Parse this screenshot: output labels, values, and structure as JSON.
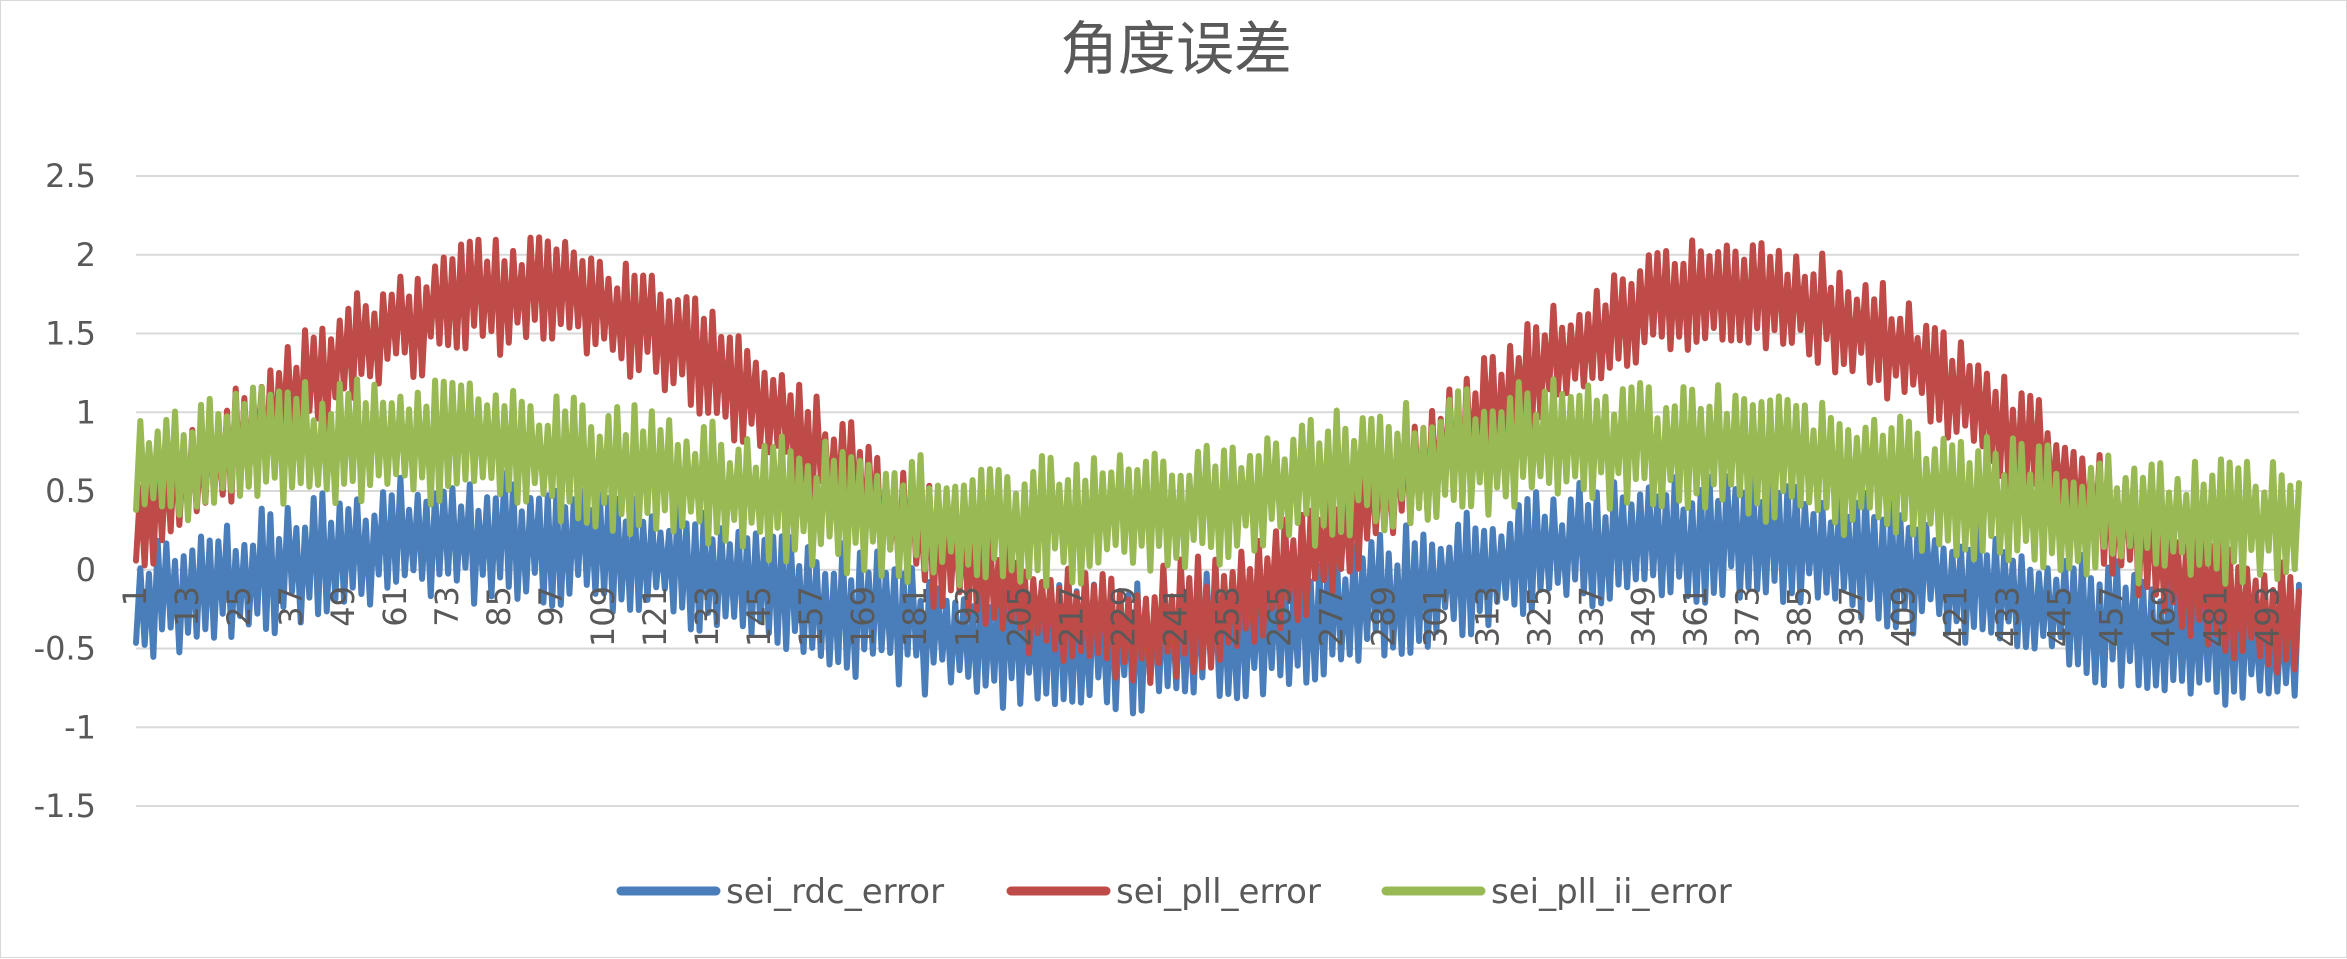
{
  "chart_data": {
    "type": "line",
    "title": "角度误差",
    "ylim": [
      -1.5,
      2.5
    ],
    "ystep": 0.5,
    "y_tick_labels": [
      "2.5",
      "2",
      "1.5",
      "1",
      "0.5",
      "0",
      "-0.5",
      "-1",
      "-1.5"
    ],
    "x_count": 500,
    "x_tick_labels": [
      "1",
      "13",
      "25",
      "37",
      "49",
      "61",
      "73",
      "85",
      "97",
      "109",
      "121",
      "133",
      "145",
      "157",
      "169",
      "181",
      "193",
      "205",
      "217",
      "229",
      "241",
      "253",
      "265",
      "277",
      "289",
      "301",
      "313",
      "325",
      "337",
      "349",
      "361",
      "373",
      "385",
      "397",
      "409",
      "421",
      "433",
      "445",
      "457",
      "469",
      "481",
      "493"
    ],
    "x_tick_start": 1,
    "x_tick_step": 12,
    "grid": true,
    "legend_position": "bottom",
    "series": [
      {
        "name": "sei_rdc_error",
        "color": "#4a7ebb",
        "envelope": {
          "period": 280,
          "base": -0.15,
          "amplitude": 0.35,
          "peak_at": 82
        },
        "noise": {
          "amplitude": 0.42,
          "seed": 11
        }
      },
      {
        "name": "sei_pll_error",
        "color": "#be4b48",
        "envelope": {
          "period": 280,
          "base": 0.7,
          "amplitude": 1.05,
          "peak_at": 90
        },
        "noise": {
          "amplitude": 0.38,
          "seed": 23
        }
      },
      {
        "name": "sei_pll_ii_error",
        "color": "#98b954",
        "envelope": {
          "period": 280,
          "base": 0.55,
          "amplitude": 0.25,
          "peak_at": 60
        },
        "noise": {
          "amplitude": 0.42,
          "seed": 37
        }
      }
    ]
  }
}
